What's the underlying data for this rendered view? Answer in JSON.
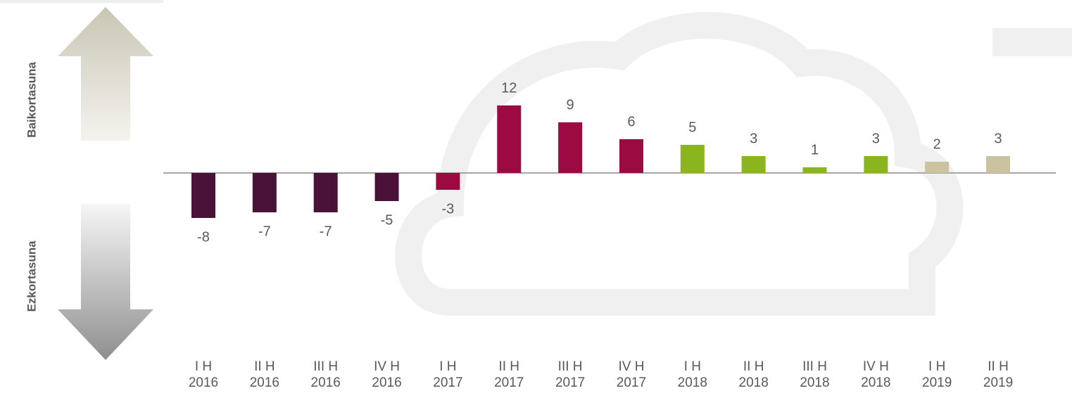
{
  "chart_data": {
    "type": "bar",
    "annotations": [
      "Baikortasuna",
      "Ezkortasuna"
    ],
    "categories": [
      [
        "I H",
        "2016"
      ],
      [
        "II H",
        "2016"
      ],
      [
        "III H",
        "2016"
      ],
      [
        "IV H",
        "2016"
      ],
      [
        "I H",
        "2017"
      ],
      [
        "II H",
        "2017"
      ],
      [
        "III H",
        "2017"
      ],
      [
        "IV H",
        "2017"
      ],
      [
        "I H",
        "2018"
      ],
      [
        "II H",
        "2018"
      ],
      [
        "III H",
        "2018"
      ],
      [
        "IV H",
        "2018"
      ],
      [
        "I H",
        "2019"
      ],
      [
        "II H",
        "2019"
      ]
    ],
    "values": [
      -8,
      -7,
      -7,
      -5,
      -3,
      12,
      9,
      6,
      5,
      3,
      1,
      3,
      2,
      3
    ],
    "colors": [
      "#4b1239",
      "#4b1239",
      "#4b1239",
      "#4b1239",
      "#9c0a42",
      "#9c0a42",
      "#9c0a42",
      "#9c0a42",
      "#8ab51f",
      "#8ab51f",
      "#8ab51f",
      "#8ab51f",
      "#cbc29f",
      "#cbc29f"
    ],
    "ylim": [
      -27,
      27
    ],
    "data_labels": true
  }
}
